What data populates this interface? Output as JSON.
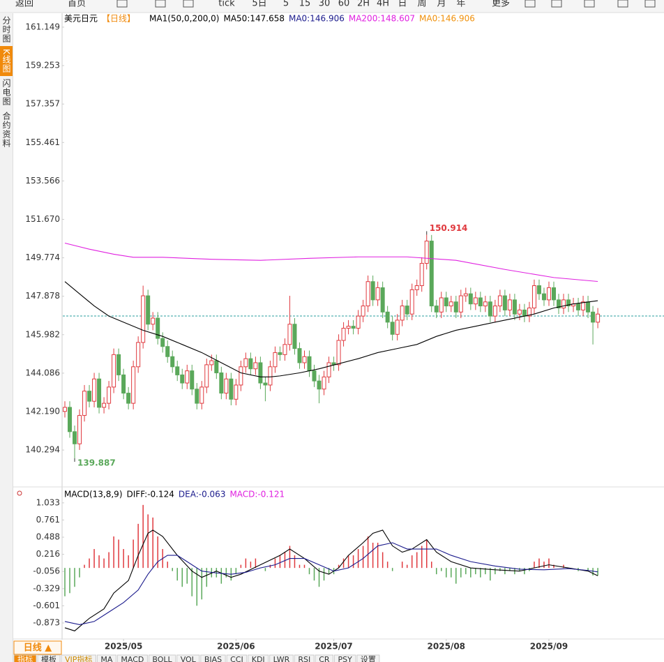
{
  "toolbar": [
    "返回",
    "首页",
    "tick",
    "5日",
    "5",
    "15",
    "30",
    "60",
    "2H",
    "4H",
    "日",
    "周",
    "月",
    "年",
    "更多"
  ],
  "sidebar": [
    "分时图",
    "K线图",
    "闪电图",
    "合约资料"
  ],
  "chart_data": [
    {
      "type": "candlestick",
      "title": "美元日元",
      "period": "【日线】",
      "indicator": "MA1(50,0,200,0)",
      "up_color": "#e0393e",
      "down_color": "#5aa85a",
      "open": [
        142.2,
        142.4,
        141.2,
        140.6,
        142.0,
        143.2,
        142.7,
        143.8,
        142.4,
        142.6,
        143.4,
        145.0,
        144.0,
        143.1,
        142.6,
        144.4,
        145.6,
        147.9,
        146.5,
        146.8,
        145.8,
        145.4,
        144.9,
        144.4,
        144.0,
        143.6,
        144.2,
        143.3,
        142.6,
        143.4,
        144.5,
        144.7,
        144.1,
        143.1,
        143.8,
        142.8,
        143.5,
        144.4,
        144.8,
        144.3,
        144.6,
        143.6,
        143.5,
        144.4,
        145.1,
        145.0,
        145.5,
        146.5,
        145.3,
        144.6,
        144.9,
        144.2,
        143.7,
        143.3,
        143.9,
        144.6,
        144.5,
        145.7,
        146.3,
        146.4,
        146.3,
        146.9,
        147.4,
        148.6,
        147.7,
        148.3,
        147.1,
        146.6,
        146.0,
        146.7,
        147.4,
        147.0,
        148.2,
        148.4,
        149.5,
        150.6,
        147.4,
        147.1,
        147.8,
        147.4,
        147.6,
        147.1,
        147.9,
        148.0,
        147.5,
        147.8,
        147.4,
        147.6,
        146.9,
        147.4,
        147.9,
        147.2,
        147.7,
        147.0,
        147.2,
        146.9,
        147.3,
        148.4,
        148.0,
        147.7,
        148.3,
        147.7,
        147.3,
        147.7,
        147.4,
        147.5,
        147.2,
        147.6,
        147.1,
        146.6
      ],
      "high": [
        142.7,
        142.7,
        141.5,
        142.3,
        143.5,
        143.5,
        144.1,
        144.1,
        142.9,
        143.7,
        145.3,
        145.3,
        144.3,
        143.4,
        144.7,
        145.9,
        148.4,
        148.2,
        147.1,
        147.1,
        146.1,
        145.7,
        145.2,
        144.7,
        144.3,
        144.5,
        144.5,
        143.6,
        143.7,
        144.8,
        145.0,
        145.0,
        144.4,
        144.1,
        144.1,
        143.8,
        144.7,
        145.1,
        145.1,
        144.9,
        144.9,
        143.9,
        144.7,
        145.4,
        145.4,
        145.8,
        147.9,
        146.8,
        145.6,
        145.2,
        145.2,
        144.5,
        144.0,
        144.2,
        144.9,
        144.9,
        146.0,
        146.6,
        146.7,
        146.7,
        147.2,
        147.7,
        148.9,
        148.9,
        148.6,
        148.6,
        147.4,
        146.9,
        147.0,
        147.7,
        147.7,
        148.5,
        148.7,
        149.8,
        150.914,
        150.9,
        147.7,
        148.1,
        148.1,
        147.9,
        147.9,
        148.2,
        148.3,
        148.3,
        148.1,
        148.1,
        147.9,
        147.9,
        147.7,
        148.2,
        148.2,
        148.0,
        148.0,
        147.5,
        147.5,
        147.6,
        148.7,
        148.7,
        148.3,
        148.6,
        148.6,
        148.0,
        148.0,
        148.0,
        147.8,
        147.8,
        147.9,
        147.9,
        147.4,
        147.3
      ],
      "low": [
        141.9,
        140.9,
        139.887,
        140.3,
        141.7,
        142.4,
        142.4,
        142.1,
        142.1,
        142.3,
        143.1,
        143.7,
        142.8,
        142.3,
        142.3,
        144.1,
        145.3,
        146.2,
        146.2,
        145.5,
        145.1,
        144.6,
        144.1,
        143.7,
        143.3,
        143.3,
        143.0,
        142.3,
        142.3,
        143.1,
        144.2,
        143.8,
        142.8,
        142.8,
        142.5,
        142.5,
        143.2,
        144.1,
        144.0,
        144.0,
        143.3,
        142.7,
        143.2,
        144.1,
        144.7,
        144.7,
        145.2,
        145.0,
        144.3,
        144.3,
        143.9,
        143.4,
        142.6,
        143.0,
        143.6,
        144.2,
        144.2,
        145.4,
        146.0,
        146.0,
        146.0,
        146.6,
        147.1,
        147.4,
        147.4,
        146.8,
        146.3,
        145.7,
        145.7,
        146.4,
        146.7,
        146.7,
        147.9,
        148.1,
        149.2,
        147.1,
        146.8,
        146.8,
        147.1,
        147.1,
        146.8,
        146.8,
        147.6,
        147.2,
        147.2,
        147.1,
        147.1,
        146.6,
        146.6,
        147.1,
        146.9,
        146.9,
        146.7,
        146.7,
        146.6,
        146.6,
        147.0,
        147.7,
        147.4,
        147.4,
        147.4,
        147.0,
        147.0,
        147.1,
        147.1,
        146.9,
        146.9,
        146.8,
        145.5,
        146.3
      ],
      "close": [
        142.4,
        141.2,
        140.6,
        142.0,
        143.2,
        142.7,
        143.8,
        142.4,
        142.6,
        143.4,
        145.0,
        144.0,
        143.1,
        142.6,
        144.4,
        145.6,
        147.9,
        146.5,
        146.8,
        145.8,
        145.4,
        144.9,
        144.4,
        144.0,
        143.6,
        144.2,
        143.3,
        142.6,
        143.4,
        144.5,
        144.7,
        144.1,
        143.1,
        143.8,
        142.8,
        143.5,
        144.4,
        144.8,
        144.3,
        144.6,
        143.6,
        143.5,
        144.4,
        145.1,
        145.0,
        145.5,
        146.5,
        145.3,
        144.6,
        144.9,
        144.2,
        143.7,
        143.3,
        143.9,
        144.6,
        144.5,
        145.7,
        146.3,
        146.4,
        146.3,
        146.9,
        147.4,
        148.6,
        147.7,
        148.3,
        147.1,
        146.6,
        146.0,
        146.7,
        147.4,
        147.0,
        148.2,
        148.4,
        149.5,
        150.6,
        147.4,
        147.1,
        147.8,
        147.4,
        147.6,
        147.1,
        147.9,
        148.0,
        147.5,
        147.8,
        147.4,
        147.6,
        146.9,
        147.4,
        147.9,
        147.2,
        147.7,
        147.0,
        147.2,
        146.9,
        147.3,
        148.4,
        148.0,
        147.7,
        148.3,
        147.7,
        147.3,
        147.7,
        147.4,
        147.5,
        147.2,
        147.6,
        147.1,
        146.6,
        147.0
      ],
      "lines": [
        {
          "name": "MA50:147.658",
          "color": "#000000",
          "x": [
            0,
            3,
            6,
            9,
            12,
            16,
            20,
            24,
            28,
            32,
            36,
            40,
            42,
            44,
            48,
            52,
            56,
            60,
            64,
            68,
            72,
            76,
            80,
            84,
            88,
            92,
            96,
            100,
            104,
            109
          ],
          "values": [
            148.6,
            148.0,
            147.4,
            146.9,
            146.6,
            146.2,
            145.9,
            145.5,
            145.1,
            144.6,
            144.1,
            143.9,
            143.9,
            143.95,
            144.1,
            144.3,
            144.55,
            144.8,
            145.1,
            145.3,
            145.5,
            145.9,
            146.2,
            146.4,
            146.6,
            146.8,
            147.0,
            147.3,
            147.5,
            147.658
          ]
        },
        {
          "name": "MA200:148.607",
          "color": "#e020e0",
          "x": [
            0,
            5,
            10,
            14,
            20,
            30,
            40,
            50,
            60,
            70,
            80,
            90,
            100,
            109
          ],
          "values": [
            150.5,
            150.2,
            149.95,
            149.8,
            149.8,
            149.7,
            149.65,
            149.75,
            149.82,
            149.82,
            149.65,
            149.2,
            148.8,
            148.607
          ]
        }
      ],
      "legend_extra": [
        {
          "name": "MA0:146.906",
          "color": "#1a1a8c"
        },
        {
          "name": "MA0:146.906",
          "color": "#f0900a"
        }
      ],
      "reference_line": {
        "value": 146.906,
        "color": "#2a9d9d"
      },
      "annotations": [
        {
          "text": "150.914",
          "x": 74,
          "value": 150.914,
          "color": "#e0393e"
        },
        {
          "text": "139.887",
          "x": 2,
          "value": 139.887,
          "color": "#5aa85a"
        }
      ],
      "ylim": [
        138.51,
        161.8
      ],
      "yticks": [
        161.149,
        159.253,
        157.357,
        155.461,
        153.566,
        {
          "value": 151.67,
          "label": "151.670"
        },
        149.774,
        147.878,
        145.982,
        144.086,
        {
          "value": 142.19,
          "label": "142.190"
        },
        140.294
      ],
      "grid": false
    },
    {
      "type": "macd",
      "title": "MACD(13,8,9)",
      "hist": {
        "name": "MACD:-0.121",
        "color": "#e020e0",
        "up_color": "#e0393e",
        "down_color": "#5aa85a",
        "values": [
          -0.45,
          -0.4,
          -0.3,
          -0.15,
          0.05,
          0.15,
          0.3,
          0.2,
          0.15,
          0.25,
          0.5,
          0.45,
          0.3,
          0.2,
          0.45,
          0.7,
          1.0,
          0.85,
          0.8,
          0.5,
          0.3,
          0.1,
          -0.05,
          -0.2,
          -0.3,
          -0.25,
          -0.45,
          -0.6,
          -0.5,
          -0.3,
          -0.15,
          -0.15,
          -0.25,
          -0.15,
          -0.2,
          -0.1,
          0.05,
          0.15,
          0.1,
          0.15,
          0.0,
          -0.05,
          0.05,
          0.15,
          0.2,
          0.25,
          0.35,
          0.2,
          0.05,
          0.05,
          -0.1,
          -0.2,
          -0.3,
          -0.2,
          -0.1,
          -0.1,
          0.05,
          0.15,
          0.2,
          0.2,
          0.3,
          0.35,
          0.5,
          0.4,
          0.4,
          0.25,
          0.1,
          -0.05,
          0.0,
          0.1,
          0.05,
          0.2,
          0.25,
          0.35,
          0.45,
          0.1,
          -0.1,
          -0.05,
          -0.15,
          -0.15,
          -0.25,
          -0.15,
          -0.1,
          -0.15,
          -0.1,
          -0.15,
          -0.1,
          -0.2,
          -0.1,
          -0.05,
          -0.1,
          -0.05,
          -0.1,
          -0.05,
          -0.1,
          -0.05,
          0.1,
          0.15,
          0.1,
          0.15,
          0.05,
          0.0,
          0.05,
          0.0,
          0.0,
          -0.05,
          0.0,
          -0.05,
          -0.12,
          -0.121
        ]
      },
      "lines": [
        {
          "name": "DIFF:-0.124",
          "color": "#000000",
          "x": [
            0,
            2,
            5,
            8,
            10,
            13,
            15,
            17,
            18,
            20,
            23,
            26,
            28,
            31,
            34,
            36,
            40,
            44,
            46,
            49,
            52,
            54,
            56,
            58,
            61,
            63,
            65,
            67,
            69,
            71,
            74,
            76,
            79,
            83,
            88,
            93,
            96,
            99,
            103,
            107,
            109
          ],
          "values": [
            -0.95,
            -1.0,
            -0.8,
            -0.65,
            -0.4,
            -0.2,
            0.2,
            0.55,
            0.6,
            0.5,
            0.2,
            -0.05,
            -0.15,
            -0.05,
            -0.15,
            -0.1,
            0.05,
            0.2,
            0.3,
            0.15,
            -0.05,
            -0.1,
            0.0,
            0.2,
            0.4,
            0.55,
            0.6,
            0.35,
            0.25,
            0.3,
            0.45,
            0.25,
            0.1,
            0.0,
            -0.03,
            -0.05,
            0.0,
            0.05,
            0.0,
            -0.05,
            -0.124
          ]
        },
        {
          "name": "DEA:-0.063",
          "color": "#1a1a8c",
          "x": [
            0,
            3,
            6,
            9,
            12,
            15,
            17,
            19,
            21,
            23,
            25,
            28,
            31,
            34,
            37,
            40,
            43,
            46,
            49,
            52,
            55,
            58,
            61,
            64,
            67,
            70,
            73,
            76,
            79,
            83,
            88,
            93,
            98,
            103,
            107,
            109
          ],
          "values": [
            -0.85,
            -0.9,
            -0.85,
            -0.7,
            -0.55,
            -0.35,
            -0.1,
            0.1,
            0.2,
            0.2,
            0.1,
            -0.05,
            -0.08,
            -0.1,
            -0.07,
            0.0,
            0.05,
            0.15,
            0.15,
            0.05,
            -0.05,
            0.0,
            0.15,
            0.35,
            0.4,
            0.3,
            0.3,
            0.3,
            0.2,
            0.1,
            0.03,
            -0.02,
            -0.03,
            -0.01,
            -0.04,
            -0.063
          ]
        }
      ],
      "ylim": [
        -1.15,
        1.12
      ],
      "yticks": [
        1.033,
        0.761,
        0.488,
        0.216,
        -0.056,
        -0.329,
        -0.601,
        -0.873
      ],
      "xticks": [
        {
          "value": 12,
          "label": "2025/05"
        },
        {
          "value": 35,
          "label": "2025/06"
        },
        {
          "value": 55,
          "label": "2025/07"
        },
        {
          "value": 78,
          "label": "2025/08"
        },
        {
          "value": 99,
          "label": "2025/09"
        }
      ]
    }
  ],
  "bottom": {
    "period": "日线 ▲",
    "tabs": [
      "指标",
      "模板",
      "VIP指标",
      "MA",
      "MACD",
      "BOLL",
      "VOL",
      "BIAS",
      "CCI",
      "KDJ",
      "LWR",
      "RSI",
      "CR",
      "PSY",
      "设置"
    ]
  }
}
